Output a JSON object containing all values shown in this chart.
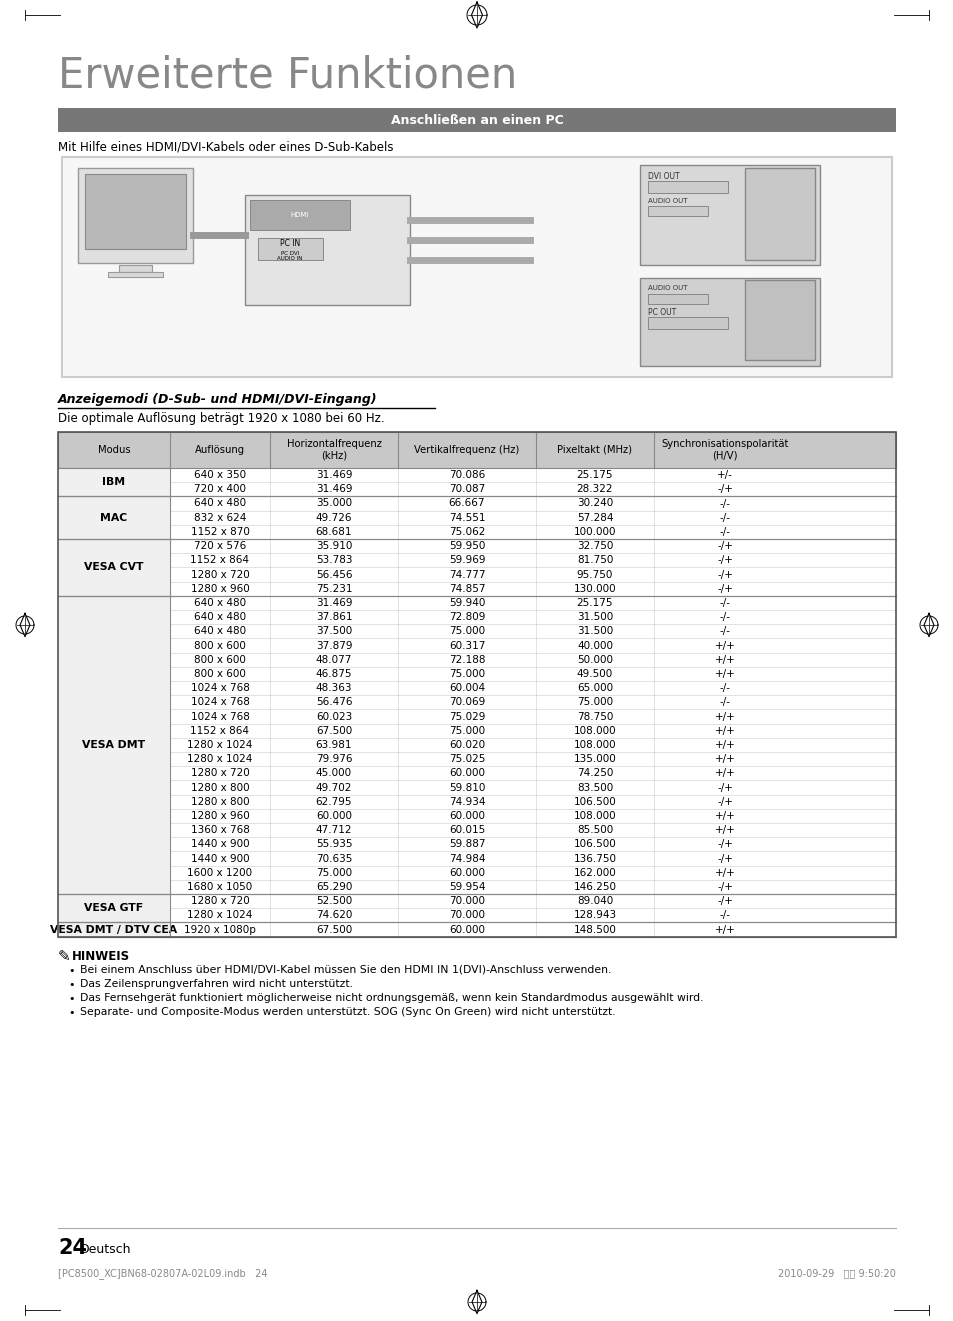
{
  "title": "Erweiterte Funktionen",
  "section_header": "Anschließen an einen PC",
  "subtitle": "Mit Hilfe eines HDMI/DVI-Kabels oder eines D-Sub-Kabels",
  "table_section": "Anzeigemodi (D-Sub- und HDMI/DVI-Eingang)",
  "table_subtitle": "Die optimale Auflösung beträgt 1920 x 1080 bei 60 Hz.",
  "col_headers": [
    "Modus",
    "Auflösung",
    "Horizontalfrequenz\n(kHz)",
    "Vertikalfrequenz (Hz)",
    "Pixeltakt (MHz)",
    "Synchronisationspolarität\n(H/V)"
  ],
  "table_data": [
    [
      "IBM",
      "640 x 350",
      "31.469",
      "70.086",
      "25.175",
      "+/-"
    ],
    [
      "IBM",
      "720 x 400",
      "31.469",
      "70.087",
      "28.322",
      "-/+"
    ],
    [
      "MAC",
      "640 x 480",
      "35.000",
      "66.667",
      "30.240",
      "-/-"
    ],
    [
      "MAC",
      "832 x 624",
      "49.726",
      "74.551",
      "57.284",
      "-/-"
    ],
    [
      "MAC",
      "1152 x 870",
      "68.681",
      "75.062",
      "100.000",
      "-/-"
    ],
    [
      "VESA CVT",
      "720 x 576",
      "35.910",
      "59.950",
      "32.750",
      "-/+"
    ],
    [
      "VESA CVT",
      "1152 x 864",
      "53.783",
      "59.969",
      "81.750",
      "-/+"
    ],
    [
      "VESA CVT",
      "1280 x 720",
      "56.456",
      "74.777",
      "95.750",
      "-/+"
    ],
    [
      "VESA CVT",
      "1280 x 960",
      "75.231",
      "74.857",
      "130.000",
      "-/+"
    ],
    [
      "VESA DMT",
      "640 x 480",
      "31.469",
      "59.940",
      "25.175",
      "-/-"
    ],
    [
      "VESA DMT",
      "640 x 480",
      "37.861",
      "72.809",
      "31.500",
      "-/-"
    ],
    [
      "VESA DMT",
      "640 x 480",
      "37.500",
      "75.000",
      "31.500",
      "-/-"
    ],
    [
      "VESA DMT",
      "800 x 600",
      "37.879",
      "60.317",
      "40.000",
      "+/+"
    ],
    [
      "VESA DMT",
      "800 x 600",
      "48.077",
      "72.188",
      "50.000",
      "+/+"
    ],
    [
      "VESA DMT",
      "800 x 600",
      "46.875",
      "75.000",
      "49.500",
      "+/+"
    ],
    [
      "VESA DMT",
      "1024 x 768",
      "48.363",
      "60.004",
      "65.000",
      "-/-"
    ],
    [
      "VESA DMT",
      "1024 x 768",
      "56.476",
      "70.069",
      "75.000",
      "-/-"
    ],
    [
      "VESA DMT",
      "1024 x 768",
      "60.023",
      "75.029",
      "78.750",
      "+/+"
    ],
    [
      "VESA DMT",
      "1152 x 864",
      "67.500",
      "75.000",
      "108.000",
      "+/+"
    ],
    [
      "VESA DMT",
      "1280 x 1024",
      "63.981",
      "60.020",
      "108.000",
      "+/+"
    ],
    [
      "VESA DMT",
      "1280 x 1024",
      "79.976",
      "75.025",
      "135.000",
      "+/+"
    ],
    [
      "VESA DMT",
      "1280 x 720",
      "45.000",
      "60.000",
      "74.250",
      "+/+"
    ],
    [
      "VESA DMT",
      "1280 x 800",
      "49.702",
      "59.810",
      "83.500",
      "-/+"
    ],
    [
      "VESA DMT",
      "1280 x 800",
      "62.795",
      "74.934",
      "106.500",
      "-/+"
    ],
    [
      "VESA DMT",
      "1280 x 960",
      "60.000",
      "60.000",
      "108.000",
      "+/+"
    ],
    [
      "VESA DMT",
      "1360 x 768",
      "47.712",
      "60.015",
      "85.500",
      "+/+"
    ],
    [
      "VESA DMT",
      "1440 x 900",
      "55.935",
      "59.887",
      "106.500",
      "-/+"
    ],
    [
      "VESA DMT",
      "1440 x 900",
      "70.635",
      "74.984",
      "136.750",
      "-/+"
    ],
    [
      "VESA DMT",
      "1600 x 1200",
      "75.000",
      "60.000",
      "162.000",
      "+/+"
    ],
    [
      "VESA DMT",
      "1680 x 1050",
      "65.290",
      "59.954",
      "146.250",
      "-/+"
    ],
    [
      "VESA GTF",
      "1280 x 720",
      "52.500",
      "70.000",
      "89.040",
      "-/+"
    ],
    [
      "VESA GTF",
      "1280 x 1024",
      "74.620",
      "70.000",
      "128.943",
      "-/-"
    ],
    [
      "VESA DMT / DTV CEA",
      "1920 x 1080p",
      "67.500",
      "60.000",
      "148.500",
      "+/+"
    ]
  ],
  "notes": [
    "Bei einem Anschluss über HDMI/DVI-Kabel müssen Sie den HDMI IN 1(DVI)-Anschluss verwenden.",
    "Das Zeilensprungverfahren wird nicht unterstützt.",
    "Das Fernsehgerät funktioniert möglicherweise nicht ordnungsgemäß, wenn kein Standardmodus ausgewählt wird.",
    "Separate- und Composite-Modus werden unterstützt. SOG (Sync On Green) wird nicht unterstützt."
  ],
  "page_num": "24",
  "page_lang": "Deutsch",
  "footer_left": "[PC8500_XC]BN68-02807A-02L09.indb   24",
  "footer_right": "2010-09-29   오전 9:50:20"
}
